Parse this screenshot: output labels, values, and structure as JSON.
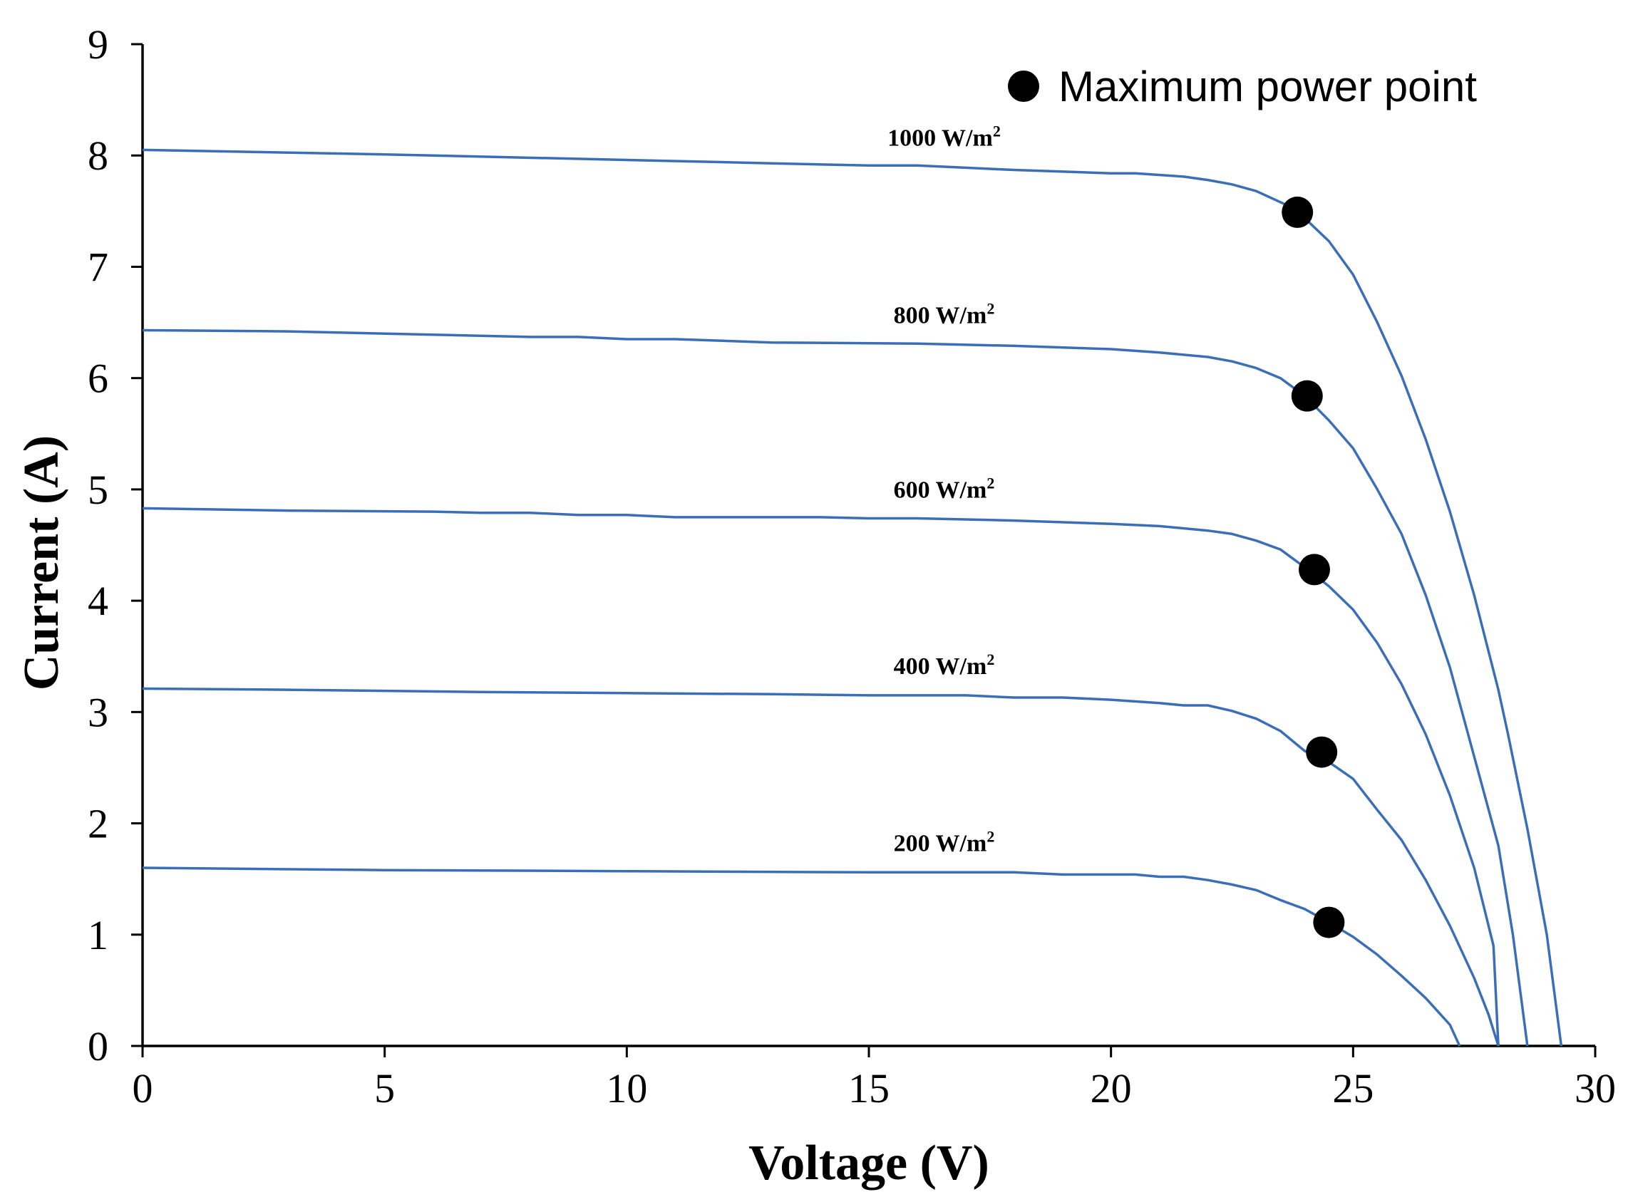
{
  "chart_data": {
    "type": "line",
    "title": "",
    "xlabel": "Voltage (V)",
    "ylabel": "Current (A)",
    "xlim": [
      0,
      30
    ],
    "ylim": [
      0,
      9
    ],
    "xticks": [
      "0",
      "5",
      "10",
      "15",
      "20",
      "25",
      "30"
    ],
    "yticks": [
      "0",
      "1",
      "2",
      "3",
      "4",
      "5",
      "6",
      "7",
      "8",
      "9"
    ],
    "grid": false,
    "line_color": "#3a6fb8",
    "marker_color": "#000000",
    "legend": {
      "label": "Maximum power point",
      "position": "top-right"
    },
    "series": [
      {
        "label_base": "1000 W/m",
        "label_sup": "2",
        "x": [
          0,
          5,
          10,
          13,
          15,
          16,
          18,
          20,
          20.5,
          21.5,
          22,
          22.5,
          23,
          23.8,
          24.5,
          25,
          25.5,
          26,
          26.5,
          27,
          27.5,
          28,
          28.2,
          28.6,
          29.0,
          29.3
        ],
        "y": [
          8.05,
          8.01,
          7.96,
          7.93,
          7.91,
          7.91,
          7.87,
          7.84,
          7.84,
          7.81,
          7.78,
          7.74,
          7.68,
          7.52,
          7.23,
          6.93,
          6.5,
          6.02,
          5.45,
          4.8,
          4.05,
          3.2,
          2.8,
          1.95,
          1.0,
          0
        ],
        "mpp": {
          "x": 23.85,
          "y": 7.49
        }
      },
      {
        "label_base": "800 W/m",
        "label_sup": "2",
        "x": [
          0,
          3,
          6,
          8,
          9,
          10,
          11,
          13,
          16,
          18,
          20,
          21,
          22,
          22.5,
          23,
          23.5,
          24,
          24.5,
          25,
          25.5,
          26,
          26.5,
          27,
          27.5,
          28,
          28.3,
          28.6
        ],
        "y": [
          6.43,
          6.42,
          6.39,
          6.37,
          6.37,
          6.35,
          6.35,
          6.32,
          6.31,
          6.29,
          6.26,
          6.23,
          6.19,
          6.15,
          6.09,
          6.0,
          5.84,
          5.62,
          5.37,
          5.0,
          4.6,
          4.05,
          3.4,
          2.6,
          1.8,
          1.0,
          0
        ],
        "mpp": {
          "x": 24.05,
          "y": 5.84
        }
      },
      {
        "label_base": "600 W/m",
        "label_sup": "2",
        "x": [
          0,
          3,
          6,
          7,
          8,
          9,
          10,
          11,
          14,
          15,
          16,
          18,
          20,
          21,
          22,
          22.5,
          23,
          23.5,
          24,
          24.5,
          25,
          25.5,
          26,
          26.5,
          27,
          27.5,
          27.9,
          28.0
        ],
        "y": [
          4.83,
          4.81,
          4.8,
          4.79,
          4.79,
          4.77,
          4.77,
          4.75,
          4.75,
          4.74,
          4.74,
          4.72,
          4.69,
          4.67,
          4.63,
          4.6,
          4.54,
          4.46,
          4.3,
          4.13,
          3.92,
          3.62,
          3.25,
          2.8,
          2.25,
          1.6,
          0.9,
          0
        ],
        "mpp": {
          "x": 24.2,
          "y": 4.28
        }
      },
      {
        "label_base": "400 W/m",
        "label_sup": "2",
        "x": [
          0,
          3,
          7,
          10,
          13,
          15,
          17,
          18,
          19,
          20,
          21,
          21.5,
          22,
          22.5,
          23,
          23.5,
          24,
          24.5,
          25,
          25.5,
          26,
          26.5,
          27,
          27.5,
          27.8,
          28.0
        ],
        "y": [
          3.21,
          3.2,
          3.18,
          3.17,
          3.16,
          3.15,
          3.15,
          3.13,
          3.13,
          3.11,
          3.08,
          3.06,
          3.06,
          3.01,
          2.94,
          2.83,
          2.65,
          2.55,
          2.4,
          2.12,
          1.85,
          1.49,
          1.08,
          0.61,
          0.28,
          0
        ],
        "mpp": {
          "x": 24.35,
          "y": 2.64
        }
      },
      {
        "label_base": "200 W/m",
        "label_sup": "2",
        "x": [
          0,
          5,
          10,
          15,
          17,
          18,
          19,
          20,
          20.5,
          21,
          21.5,
          22,
          22.5,
          23,
          23.5,
          24,
          24.5,
          25,
          25.5,
          26,
          26.5,
          27,
          27.2
        ],
        "y": [
          1.6,
          1.58,
          1.57,
          1.56,
          1.56,
          1.56,
          1.54,
          1.54,
          1.54,
          1.52,
          1.52,
          1.49,
          1.45,
          1.4,
          1.31,
          1.23,
          1.11,
          0.98,
          0.82,
          0.63,
          0.43,
          0.19,
          0
        ],
        "mpp": {
          "x": 24.5,
          "y": 1.11
        }
      }
    ]
  }
}
